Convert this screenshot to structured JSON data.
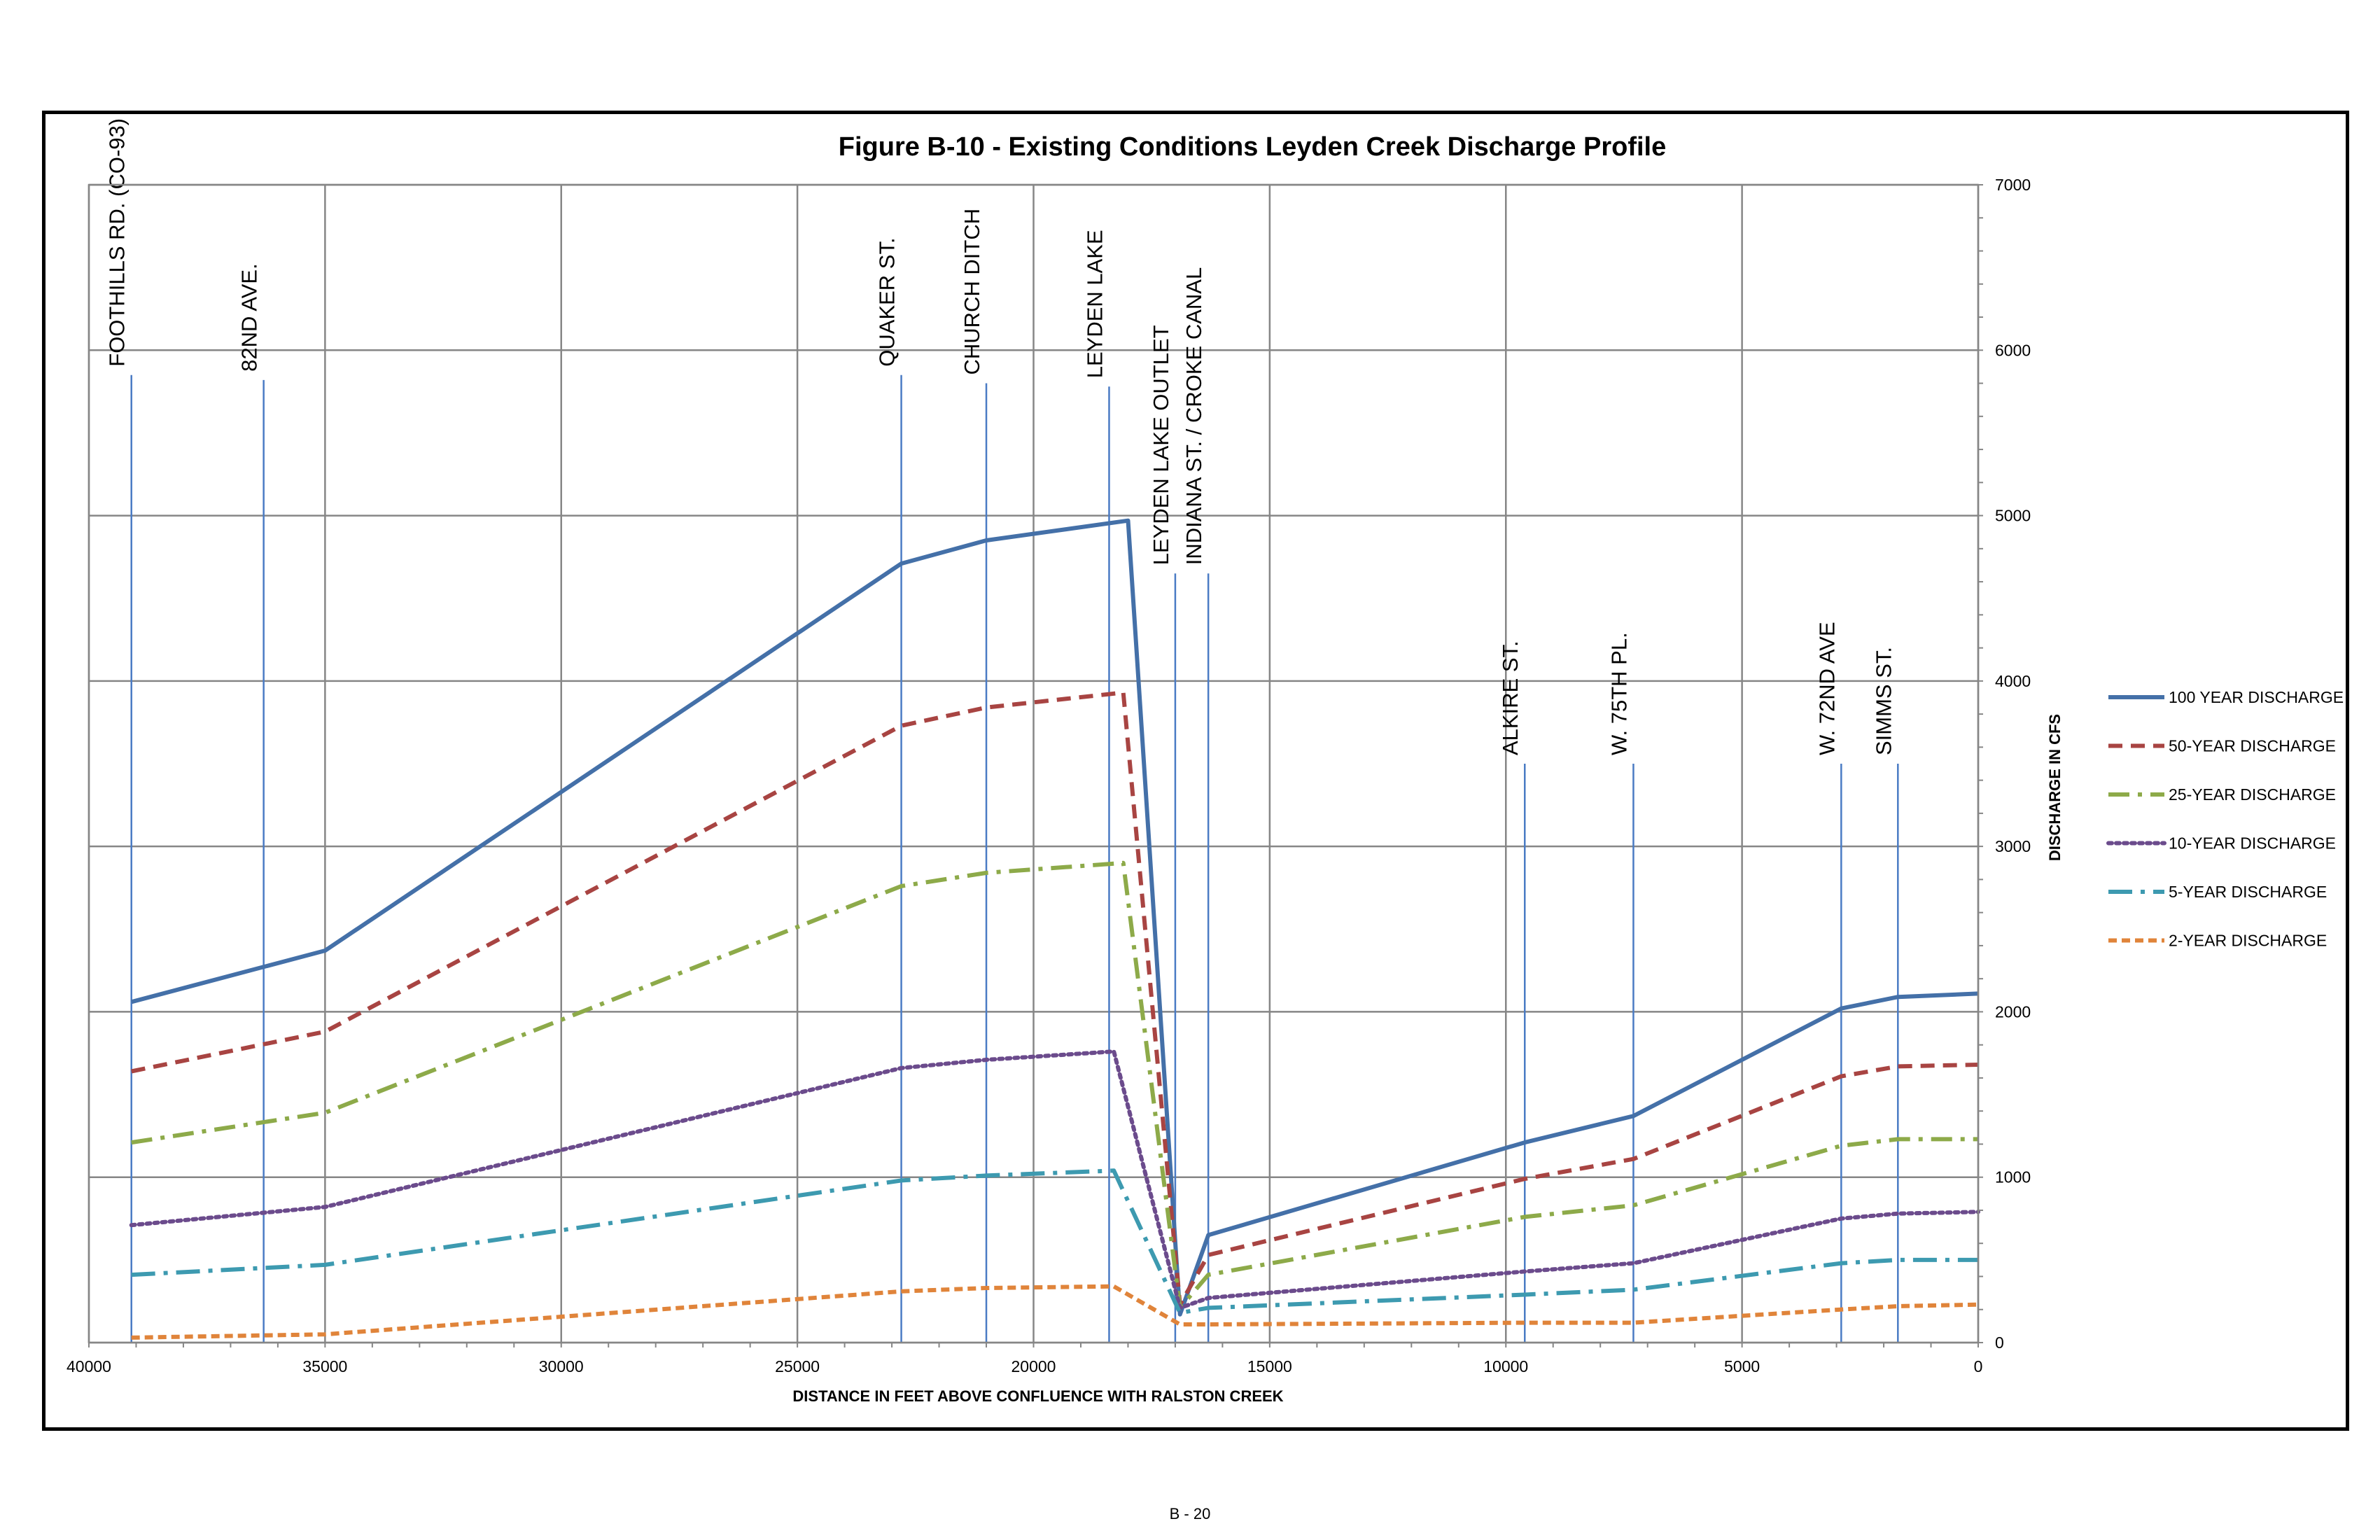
{
  "page_number": "B - 20",
  "chart_data": {
    "type": "line",
    "title": "Figure B-10 - Existing Conditions Leyden Creek Discharge Profile",
    "xlabel": "DISTANCE IN FEET ABOVE CONFLUENCE WITH RALSTON CREEK",
    "ylabel": "DISCHARGE IN CFS",
    "xlim": [
      40000,
      0
    ],
    "ylim": [
      0,
      7000
    ],
    "x_reversed": true,
    "y_axis_side": "right",
    "grid": true,
    "legend_position": "right",
    "x_ticks": [
      "40000",
      "35000",
      "30000",
      "25000",
      "20000",
      "15000",
      "10000",
      "5000",
      "0"
    ],
    "y_ticks": [
      "0",
      "1000",
      "2000",
      "3000",
      "4000",
      "5000",
      "6000",
      "7000"
    ],
    "landmarks": [
      {
        "label": "FOOTHILLS RD. (CO-93)",
        "x": 39100,
        "top": 5850
      },
      {
        "label": "82ND AVE.",
        "x": 36300,
        "top": 5820
      },
      {
        "label": "QUAKER ST.",
        "x": 22800,
        "top": 5850
      },
      {
        "label": "CHURCH DITCH",
        "x": 21000,
        "top": 5800
      },
      {
        "label": "LEYDEN LAKE",
        "x": 18400,
        "top": 5780
      },
      {
        "label": "LEYDEN LAKE OUTLET",
        "x": 17000,
        "top": 4650
      },
      {
        "label": "INDIANA ST. / CROKE CANAL",
        "x": 16300,
        "top": 4650
      },
      {
        "label": "ALKIRE ST.",
        "x": 9600,
        "top": 3500
      },
      {
        "label": "W. 75TH PL.",
        "x": 7300,
        "top": 3500
      },
      {
        "label": "W. 72ND AVE",
        "x": 2900,
        "top": 3500
      },
      {
        "label": "SIMMS ST.",
        "x": 1700,
        "top": 3500
      }
    ],
    "series": [
      {
        "name": "100 YEAR DISCHARGE",
        "color": "#4470A8",
        "dash": "solid",
        "x": [
          39100,
          35000,
          22800,
          21000,
          18000,
          16900,
          16300,
          9600,
          7300,
          2900,
          1700,
          0
        ],
        "values": [
          2060,
          2370,
          4710,
          4850,
          4970,
          170,
          650,
          1210,
          1370,
          2020,
          2090,
          2110
        ]
      },
      {
        "name": "50-YEAR DISCHARGE",
        "color": "#A84442",
        "dash": "dash",
        "x": [
          39100,
          35000,
          22800,
          21000,
          18100,
          16900,
          16300,
          9600,
          7300,
          2900,
          1700,
          0
        ],
        "values": [
          1640,
          1880,
          3730,
          3840,
          3930,
          230,
          530,
          990,
          1110,
          1610,
          1670,
          1680
        ]
      },
      {
        "name": "25-YEAR DISCHARGE",
        "color": "#8DAA49",
        "dash": "dashdot",
        "x": [
          39100,
          35000,
          22800,
          21000,
          18100,
          16900,
          16300,
          9600,
          7300,
          2900,
          1700,
          0
        ],
        "values": [
          1210,
          1390,
          2760,
          2840,
          2900,
          210,
          410,
          760,
          830,
          1190,
          1230,
          1230
        ]
      },
      {
        "name": "10-YEAR DISCHARGE",
        "color": "#6B4B8C",
        "dash": "dot",
        "x": [
          39100,
          35000,
          22800,
          21000,
          18300,
          16900,
          16300,
          9600,
          7300,
          2900,
          1700,
          0
        ],
        "values": [
          710,
          820,
          1660,
          1710,
          1760,
          210,
          270,
          430,
          480,
          750,
          780,
          790
        ]
      },
      {
        "name": "5-YEAR DISCHARGE",
        "color": "#3D9AB0",
        "dash": "longdashdot",
        "x": [
          39100,
          35000,
          22800,
          21000,
          18300,
          16900,
          16300,
          9600,
          7300,
          2900,
          1700,
          0
        ],
        "values": [
          410,
          470,
          980,
          1010,
          1040,
          180,
          210,
          290,
          320,
          480,
          500,
          500
        ]
      },
      {
        "name": "2-YEAR DISCHARGE",
        "color": "#E0843A",
        "dash": "shortdash",
        "x": [
          39100,
          35000,
          22800,
          21000,
          18300,
          16900,
          16300,
          9600,
          7300,
          2900,
          1700,
          0
        ],
        "values": [
          30,
          50,
          310,
          330,
          340,
          110,
          110,
          120,
          120,
          200,
          220,
          230
        ]
      }
    ]
  }
}
